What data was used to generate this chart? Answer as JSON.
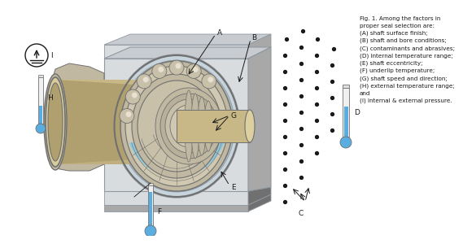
{
  "background_color": "#ffffff",
  "fig_text": "Fig. 1. Among the factors in\nproper seal selection are:\n(A) shaft surface finish;\n(B) shaft and bore conditions;\n(C) contaminants and abrasives;\n(D) internal temperature range;\n(E) shaft eccentricity;\n(F) underlip temperature;\n(G) shaft speed and direction;\n(H) external temperature range;\nand\n(I) internal & external pressure.",
  "dot_color": "#1a1a1a",
  "blue": "#5aade0",
  "gray_light": "#d0d0d0",
  "gray_mid": "#a8a8a8",
  "gray_dark": "#707070",
  "gray_housing": "#c8ccd0",
  "gray_face": "#b8bcc0",
  "tan": "#c8b888",
  "tan_dark": "#b0a070",
  "bearing_tan": "#c0b8a0",
  "fluid_blue": "#80c8e8",
  "steel_light": "#d8dcdf",
  "steel_dark": "#9098a0",
  "black": "#1a1a1a"
}
